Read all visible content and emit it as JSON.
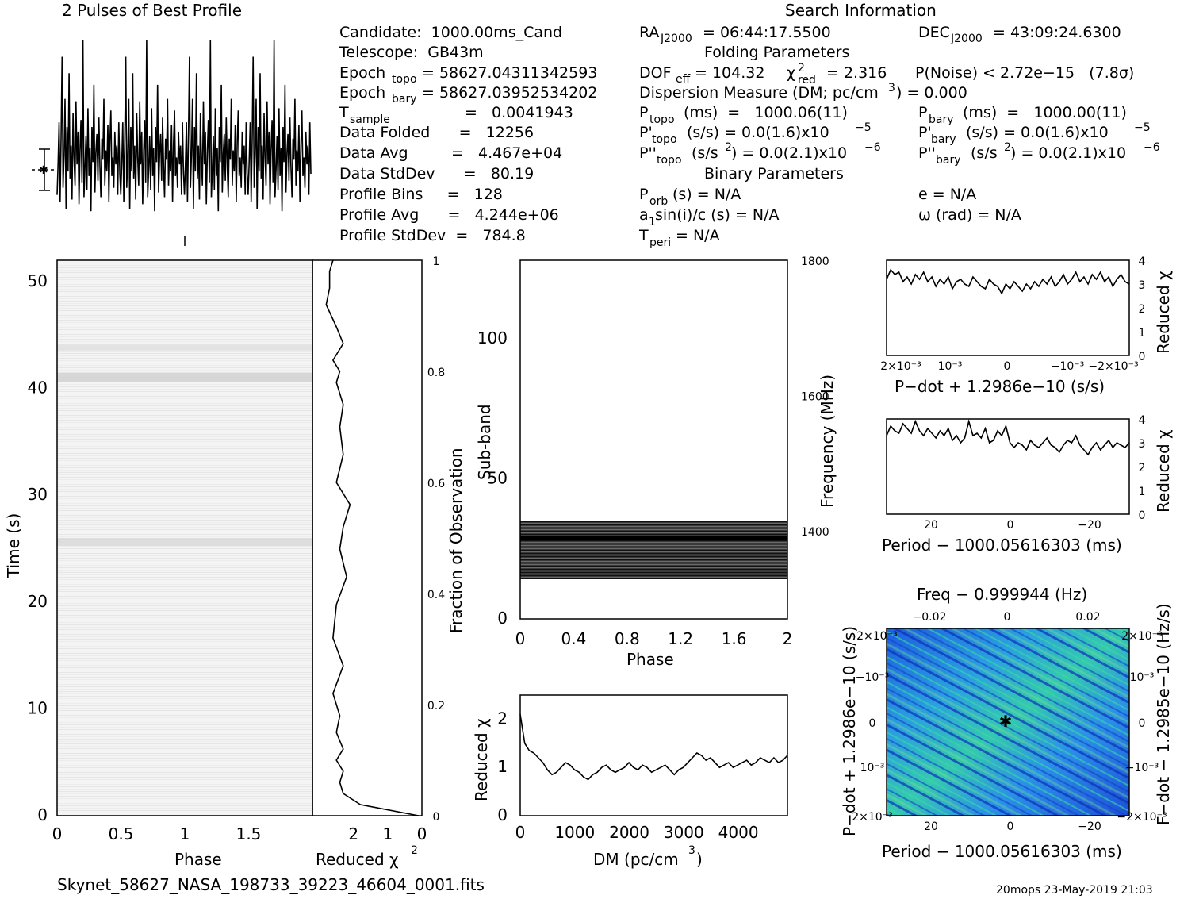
{
  "header": {
    "left_title": "2 Pulses of Best Profile",
    "right_title": "Search Information",
    "filename": "Skynet_58627_NASA_198733_39223_46604_0001.fits",
    "footer_right": "20mops 23-May-2019 21:03"
  },
  "info": {
    "candidate": "Candidate:  1000.00ms_Cand",
    "telescope": "Telescope:  GB43m",
    "epoch_topo_lbl": "Epoch",
    "epoch_topo_sub": "topo",
    "epoch_topo_val": "= 58627.04311342593",
    "epoch_bary_lbl": "Epoch",
    "epoch_bary_sub": "bary",
    "epoch_bary_val": "= 58627.03952534202",
    "tsample_lbl": "T",
    "tsample_sub": "sample",
    "tsample_val": "=   0.0041943",
    "data_folded": "Data Folded      =   12256",
    "data_avg": "Data Avg         =   4.467e+04",
    "data_stddev": "Data StdDev      =   80.19",
    "profile_bins": "Profile Bins     =   128",
    "profile_avg": "Profile Avg      =   4.244e+06",
    "profile_stddev": "Profile StdDev  =   784.8",
    "ra": "= 06:44:17.5500",
    "dec": "= 43:09:24.6300",
    "ra_lbl": "RA",
    "ra_sub": "J2000",
    "dec_lbl": "DEC",
    "dec_sub": "J2000",
    "folding_params": "Folding Parameters",
    "dof_lbl": "DOF",
    "dof_sub": "eff",
    "dof_val": "= 104.32",
    "chi_lbl": "χ",
    "chi_sup": "2",
    "chi_sub": "red",
    "chi_val": "= 2.316",
    "pnoise": "P(Noise) < 2.72e−15   (7.8σ)",
    "dm_line": "Dispersion Measure (DM; pc/cm",
    "dm_sup": "3",
    "dm_val": ") = 0.000",
    "ptopo": "(ms)  =   1000.06(11)",
    "pbary": "(ms)  =   1000.00(11)",
    "pdtopo": "(s/s) = 0.0(1.6)x10",
    "pdtopo_exp": "−5",
    "pdbary": "(s/s) = 0.0(1.6)x10",
    "pdbary_exp": "−5",
    "pddtopo": "(s/s",
    "pddtopo2": ") = 0.0(2.1)x10",
    "pddtopo_exp": "−6",
    "pddbary": "(s/s",
    "pddbary2": ") = 0.0(2.1)x10",
    "pddbary_exp": "−6",
    "binary_params": "Binary Parameters",
    "porb": "(s) = N/A",
    "a1": "sin(i)/c (s) = N/A",
    "tperi": "= N/A",
    "ecc": "e = N/A",
    "omega": "ω (rad) = N/A"
  },
  "chart_data": [
    {
      "name": "profile",
      "type": "line",
      "title": "2 Pulses of Best Profile",
      "xlim": [
        0,
        2
      ],
      "series": [
        {
          "values": [
            0.31,
            0.45,
            0.62,
            0.28,
            0.55,
            0.9,
            0.34,
            0.48,
            0.72,
            0.25,
            0.6,
            0.41,
            0.83,
            0.38,
            0.52,
            0.29,
            0.66,
            0.47,
            0.35,
            0.71,
            0.44,
            0.58,
            0.27,
            0.5,
            0.63,
            0.36,
            0.97,
            0.3,
            0.42,
            0.56,
            0.33,
            0.68,
            0.39,
            0.51,
            0.24,
            0.6,
            0.45,
            0.78,
            0.32,
            0.49,
            0.57,
            0.37,
            0.64,
            0.43,
            0.3,
            0.55,
            0.46,
            0.72,
            0.35,
            0.5,
            0.41,
            0.61,
            0.28,
            0.53,
            0.67,
            0.39,
            0.47,
            0.34,
            0.58,
            0.44,
            0.52,
            0.31,
            0.62,
            0.4
          ]
        }
      ]
    },
    {
      "name": "time-phase",
      "type": "heatmap",
      "xlabel": "Phase",
      "ylabel": "Time (s)",
      "xlim": [
        0,
        2
      ],
      "ylim": [
        0,
        52
      ],
      "x_ticks": [
        "0",
        "0.5",
        "1",
        "1.5"
      ],
      "y_ticks": [
        "0",
        "10",
        "20",
        "30",
        "40",
        "50"
      ]
    },
    {
      "name": "time-chi2",
      "type": "line",
      "xlabel": "Reduced χ",
      "xlabel_sup": "2",
      "ylabel": "Fraction of Observation",
      "x_ticks": [
        "2",
        "1",
        "0"
      ],
      "y_ticks": [
        "0",
        "0.2",
        "0.4",
        "0.6",
        "0.8",
        "1"
      ],
      "xlim": [
        3.2,
        0
      ],
      "ylim": [
        0,
        1
      ],
      "x": [
        0.1,
        1.8,
        2.3,
        2.4,
        2.3,
        2.5,
        2.3,
        2.5,
        2.4,
        2.6,
        2.3,
        2.6,
        2.5,
        2.2,
        2.4,
        2.3,
        2.1,
        2.5,
        2.3,
        2.4,
        2.3,
        2.5,
        2.4,
        2.6,
        2.3,
        2.5,
        2.8,
        2.7,
        2.7,
        2.6
      ],
      "y": [
        0.0,
        0.02,
        0.04,
        0.06,
        0.08,
        0.1,
        0.12,
        0.15,
        0.18,
        0.22,
        0.27,
        0.32,
        0.38,
        0.43,
        0.48,
        0.52,
        0.56,
        0.6,
        0.65,
        0.7,
        0.74,
        0.78,
        0.8,
        0.82,
        0.85,
        0.88,
        0.92,
        0.95,
        0.98,
        1.0
      ]
    },
    {
      "name": "freq-phase",
      "type": "heatmap",
      "xlabel": "Phase",
      "ylabel": "Sub-band",
      "ylabel_right": "Frequency (MHz)",
      "xlim": [
        0,
        2
      ],
      "ylim": [
        0,
        128
      ],
      "x_ticks": [
        "0",
        "0.4",
        "0.8",
        "1.2",
        "1.6",
        "2"
      ],
      "y_ticks": [
        "0",
        "50",
        "100"
      ],
      "y_ticks_right": [
        "1400",
        "1600",
        "1800"
      ]
    },
    {
      "name": "dm-chi2",
      "type": "line",
      "xlabel": "DM (pc/cm",
      "xlabel_sup": "3",
      "xlabel_end": ")",
      "ylabel": "Reduced χ",
      "ylabel_sup": "2",
      "xlim": [
        0,
        4900
      ],
      "ylim": [
        0,
        2.5
      ],
      "x_ticks": [
        "0",
        "1000",
        "2000",
        "3000",
        "4000"
      ],
      "y_ticks": [
        "0",
        "1",
        "2"
      ],
      "y": [
        2.1,
        1.5,
        1.35,
        1.3,
        1.2,
        1.1,
        0.95,
        0.85,
        0.9,
        1.0,
        1.1,
        1.05,
        0.95,
        0.9,
        0.8,
        0.75,
        0.85,
        0.9,
        1.0,
        1.05,
        0.95,
        0.9,
        0.95,
        1.0,
        1.1,
        1.0,
        0.95,
        1.05,
        1.0,
        0.9,
        0.95,
        1.0,
        1.05,
        0.95,
        0.85,
        0.95,
        1.0,
        1.1,
        1.2,
        1.3,
        1.25,
        1.15,
        1.2,
        1.1,
        1.0,
        1.05,
        1.1,
        1.0,
        1.05,
        1.1,
        1.15,
        1.05,
        1.1,
        1.2,
        1.15,
        1.1,
        1.2,
        1.1,
        1.15,
        1.25
      ]
    },
    {
      "name": "pdot-chi2",
      "type": "line",
      "xlabel": "P−dot + 1.2986e−10 (s/s)",
      "ylabel": "Reduced χ",
      "ylabel_sup": "2",
      "x_ticks": [
        "2×10⁻³",
        "10⁻³",
        "0",
        "−10⁻³",
        "−2×10⁻³"
      ],
      "y_ticks": [
        "0",
        "1",
        "2",
        "3",
        "4"
      ],
      "ylim": [
        0,
        4
      ],
      "y": [
        3.2,
        3.6,
        3.4,
        3.5,
        3.1,
        3.3,
        3.0,
        3.4,
        3.2,
        3.5,
        3.1,
        3.3,
        2.9,
        3.2,
        3.0,
        3.3,
        2.8,
        3.1,
        3.2,
        3.0,
        2.9,
        3.3,
        3.1,
        2.9,
        2.8,
        3.2,
        3.0,
        2.9,
        2.6,
        3.0,
        2.8,
        3.1,
        2.9,
        2.7,
        3.0,
        2.8,
        3.1,
        2.9,
        3.2,
        3.0,
        3.3,
        2.9,
        3.1,
        3.4,
        3.0,
        3.2,
        3.5,
        3.1,
        3.3,
        3.0,
        3.4,
        3.2,
        3.5,
        3.1,
        3.3,
        2.9,
        3.2,
        3.4,
        3.1,
        3.0
      ]
    },
    {
      "name": "period-chi2",
      "type": "line",
      "xlabel": "Period − 1000.05616303 (ms)",
      "ylabel": "Reduced χ",
      "ylabel_sup": "2",
      "x_ticks": [
        "20",
        "0",
        "−20"
      ],
      "y_ticks": [
        "0",
        "1",
        "2",
        "3",
        "4"
      ],
      "ylim": [
        0,
        4
      ],
      "y": [
        3.3,
        3.7,
        3.5,
        3.4,
        3.8,
        3.6,
        3.4,
        3.9,
        3.5,
        3.3,
        3.6,
        3.4,
        3.2,
        3.5,
        3.3,
        3.6,
        3.1,
        3.3,
        3.0,
        3.2,
        3.9,
        3.3,
        3.4,
        3.2,
        3.6,
        3.0,
        3.1,
        3.5,
        3.3,
        3.7,
        3.0,
        2.8,
        3.0,
        2.9,
        2.7,
        3.1,
        2.9,
        2.8,
        3.0,
        3.2,
        2.9,
        2.8,
        2.6,
        2.9,
        3.1,
        3.0,
        3.3,
        2.9,
        2.7,
        2.5,
        2.8,
        3.0,
        2.7,
        2.9,
        3.1,
        2.8,
        3.0,
        2.9,
        2.8,
        3.0
      ]
    },
    {
      "name": "p-pdot",
      "type": "heatmap",
      "xlabel": "Period − 1000.05616303 (ms)",
      "xlabel_top": "Freq − 0.999944 (Hz)",
      "ylabel": "P−dot + 1.2986e−10 (s/s)",
      "ylabel_right": "F−dot − 1.2985e−10 (Hz/s)",
      "x_ticks": [
        "20",
        "0",
        "−20"
      ],
      "x_ticks_top": [
        "−0.02",
        "0",
        "0.02"
      ],
      "y_ticks": [
        "2×10⁻³",
        "10⁻³",
        "0",
        "−10⁻³",
        "−2×10⁻³"
      ],
      "y_ticks_right": [
        "−2×10⁻³",
        "−10⁻³",
        "0",
        "10⁻³",
        "2×10⁻³"
      ]
    }
  ]
}
